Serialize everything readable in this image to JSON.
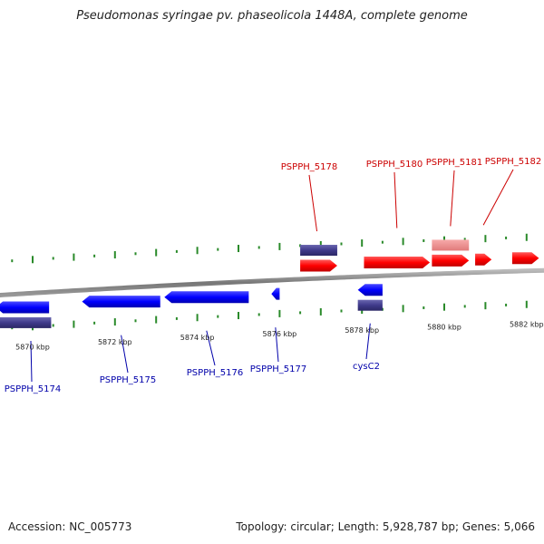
{
  "title": "Pseudomonas syringae pv. phaseolicola 1448A, complete genome",
  "footer": {
    "accession": "Accession: NC_005773",
    "topology": "Topology: circular; Length: 5,928,787 bp; Genes: 5,066"
  },
  "colors": {
    "forward_gene": "#ff0000",
    "forward_gene_light": "#f08080",
    "reverse_gene": "#0000ff",
    "cds_bar": "#3f3a8a",
    "backbone": "#888888",
    "ticks": "#2a8a2a",
    "forward_label": "#cc0000",
    "reverse_label": "#0000aa"
  },
  "scale": {
    "unit": "kbp",
    "ticks": [
      {
        "kbp": 5870,
        "label": "5870 kbp"
      },
      {
        "kbp": 5872,
        "label": "5872 kbp"
      },
      {
        "kbp": 5874,
        "label": "5874 kbp"
      },
      {
        "kbp": 5876,
        "label": "5876 kbp"
      },
      {
        "kbp": 5878,
        "label": "5878 kbp"
      },
      {
        "kbp": 5880,
        "label": "5880 kbp"
      },
      {
        "kbp": 5882,
        "label": "5882 kbp"
      }
    ]
  },
  "genes": {
    "forward": [
      {
        "label": "PSPPH_5178",
        "start_kbp": 5876.5,
        "end_kbp": 5877.4
      },
      {
        "label": "PSPPH_5180",
        "start_kbp": 5878.05,
        "end_kbp": 5879.65
      },
      {
        "label": "PSPPH_5181",
        "start_kbp": 5879.7,
        "end_kbp": 5880.6
      },
      {
        "label": "PSPPH_5182",
        "start_kbp": 5880.75,
        "end_kbp": 5881.15
      },
      {
        "label": "",
        "start_kbp": 5881.65,
        "end_kbp": 5882.3
      }
    ],
    "reverse": [
      {
        "label": "PSPPH_5174",
        "start_kbp": 5869.1,
        "end_kbp": 5870.4
      },
      {
        "label": "PSPPH_5175",
        "start_kbp": 5871.2,
        "end_kbp": 5873.1
      },
      {
        "label": "PSPPH_5176",
        "start_kbp": 5873.2,
        "end_kbp": 5875.25
      },
      {
        "label": "PSPPH_5177",
        "start_kbp": 5875.8,
        "end_kbp": 5876.0
      },
      {
        "label": "cysC2",
        "start_kbp": 5877.9,
        "end_kbp": 5878.5
      }
    ],
    "forward_features": [
      {
        "start_kbp": 5876.5,
        "end_kbp": 5877.4,
        "kind": "cds"
      },
      {
        "start_kbp": 5879.7,
        "end_kbp": 5880.6,
        "kind": "light"
      }
    ],
    "reverse_features": [
      {
        "start_kbp": 5869.1,
        "end_kbp": 5870.45,
        "kind": "cds"
      },
      {
        "start_kbp": 5877.9,
        "end_kbp": 5878.5,
        "kind": "cds"
      }
    ]
  }
}
